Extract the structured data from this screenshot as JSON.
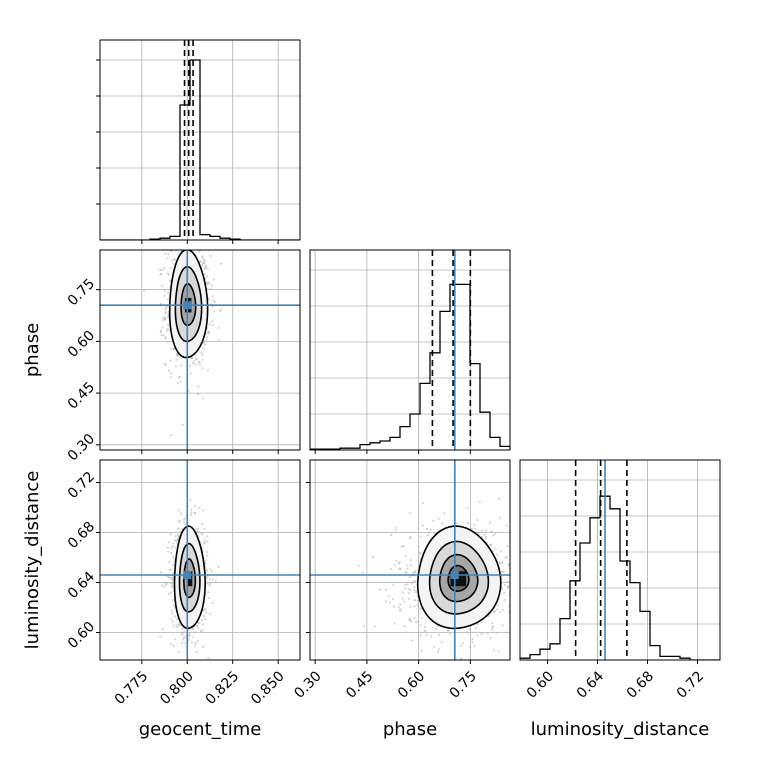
{
  "chart_data": {
    "type": "corner",
    "parameters": [
      "geocent_time",
      "phase",
      "luminosity_distance"
    ],
    "axis_labels": {
      "geocent_time": "geocent_time",
      "phase": "phase",
      "luminosity_distance": "luminosity_distance"
    },
    "ranges": {
      "geocent_time": [
        0.752,
        0.862
      ],
      "phase": [
        0.285,
        0.865
      ],
      "luminosity_distance": [
        0.578,
        0.738
      ]
    },
    "ticks": {
      "geocent_time": [
        "0.775",
        "0.800",
        "0.825",
        "0.850"
      ],
      "phase": [
        "0.30",
        "0.45",
        "0.60",
        "0.75"
      ],
      "luminosity_distance": [
        "0.60",
        "0.64",
        "0.68",
        "0.72"
      ]
    },
    "truths": {
      "geocent_time": 0.8,
      "phase": 0.705,
      "luminosity_distance": 0.646
    },
    "quantiles": {
      "geocent_time": [
        0.7985,
        0.8008,
        0.8032
      ],
      "phase": [
        0.64,
        0.7,
        0.75
      ],
      "luminosity_distance": [
        0.6225,
        0.6425,
        0.6635
      ]
    },
    "histograms": {
      "geocent_time": {
        "edges": [
          0.752,
          0.7575,
          0.763,
          0.7685,
          0.774,
          0.7795,
          0.785,
          0.7905,
          0.796,
          0.8015,
          0.807,
          0.8125,
          0.818,
          0.8235,
          0.829,
          0.8345,
          0.84,
          0.8455,
          0.851,
          0.8565,
          0.862
        ],
        "counts": [
          0,
          0,
          0,
          0,
          0,
          0.005,
          0.01,
          0.02,
          0.75,
          1.0,
          0.03,
          0.02,
          0.01,
          0.005,
          0,
          0,
          0,
          0,
          0,
          0
        ]
      },
      "phase": {
        "edges": [
          0.285,
          0.314,
          0.343,
          0.372,
          0.401,
          0.43,
          0.459,
          0.488,
          0.517,
          0.546,
          0.575,
          0.604,
          0.633,
          0.662,
          0.691,
          0.72,
          0.749,
          0.778,
          0.807,
          0.836,
          0.865
        ],
        "counts": [
          0.005,
          0.005,
          0.005,
          0.01,
          0.01,
          0.03,
          0.04,
          0.05,
          0.07,
          0.13,
          0.2,
          0.37,
          0.54,
          0.77,
          0.92,
          0.92,
          0.48,
          0.21,
          0.07,
          0.02
        ]
      },
      "luminosity_distance": {
        "edges": [
          0.578,
          0.586,
          0.594,
          0.602,
          0.61,
          0.618,
          0.626,
          0.634,
          0.642,
          0.65,
          0.658,
          0.666,
          0.674,
          0.682,
          0.69,
          0.698,
          0.706,
          0.714,
          0.722,
          0.73,
          0.738
        ],
        "counts": [
          0.01,
          0.03,
          0.06,
          0.09,
          0.23,
          0.44,
          0.65,
          0.79,
          0.91,
          0.84,
          0.55,
          0.43,
          0.27,
          0.08,
          0.02,
          0.02,
          0.01,
          0,
          0,
          0
        ]
      }
    },
    "hist2d": [
      {
        "x": "geocent_time",
        "y": "phase",
        "center": [
          0.8005,
          0.705
        ],
        "sigma": [
          0.004,
          0.06
        ],
        "contour_scales": [
          1.0,
          1.8,
          2.6
        ],
        "scatter_sigma": [
          0.006,
          0.09
        ]
      },
      {
        "x": "geocent_time",
        "y": "luminosity_distance",
        "center": [
          0.8012,
          0.643
        ],
        "sigma": [
          0.0035,
          0.017
        ],
        "contour_scales": [
          0.9,
          1.6,
          2.4
        ],
        "scatter_sigma": [
          0.005,
          0.022
        ]
      },
      {
        "x": "phase",
        "y": "luminosity_distance",
        "center": [
          0.715,
          0.643
        ],
        "sigma": [
          0.05,
          0.017
        ],
        "contour_scales": [
          0.6,
          1.1,
          1.7,
          2.4
        ],
        "scatter_sigma": [
          0.09,
          0.022
        ]
      }
    ],
    "grid": true,
    "colors": {
      "truth": "#4682b4",
      "hist": "#000000",
      "points": "#b3b3b3"
    }
  }
}
